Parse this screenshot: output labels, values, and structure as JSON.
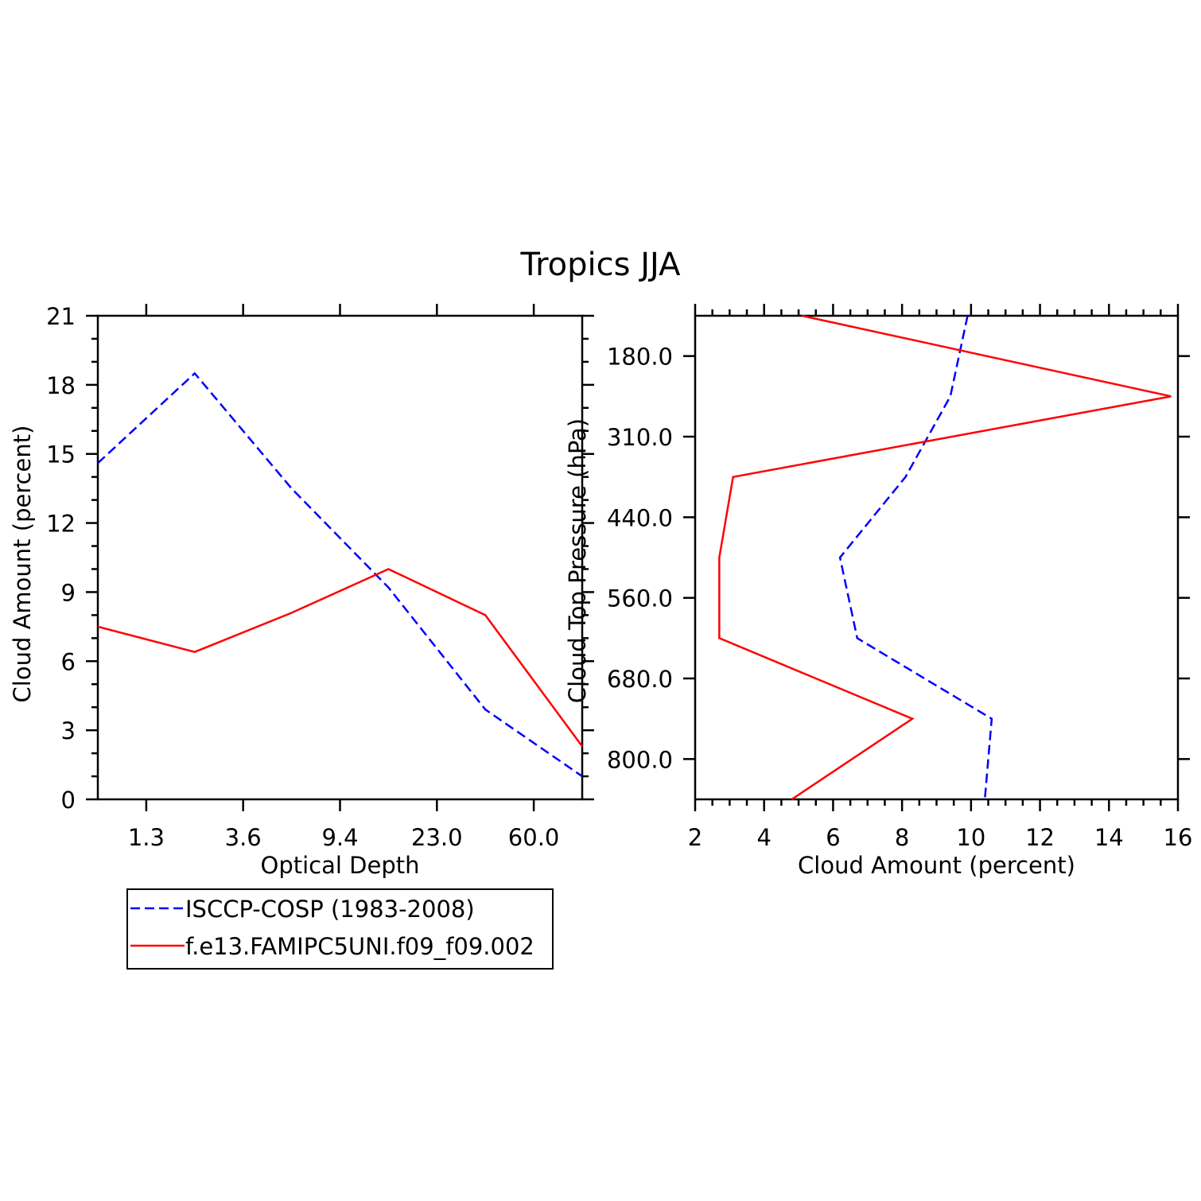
{
  "figure": {
    "title": "Tropics JJA"
  },
  "legend": {
    "entries": [
      {
        "label": "ISCCP-COSP (1983-2008)",
        "color": "#0000ff",
        "dash": "dashed"
      },
      {
        "label": "f.e13.FAMIPC5UNI.f09_f09.002",
        "color": "#ff0000",
        "dash": "solid"
      }
    ]
  },
  "chart_data": [
    {
      "type": "line",
      "xlabel": "Optical Depth",
      "ylabel": "Cloud Amount (percent)",
      "ylim": [
        0,
        21
      ],
      "yticks": [
        0,
        3,
        6,
        9,
        12,
        15,
        18,
        21
      ],
      "x_bins": 6,
      "x_tick_labels": [
        "1.3",
        "3.6",
        "9.4",
        "23.0",
        "60.0"
      ],
      "series": [
        {
          "name": "ISCCP-COSP (1983-2008)",
          "color": "#0000ff",
          "dash": "dashed",
          "values": [
            14.6,
            18.5,
            13.5,
            9.2,
            3.9,
            1.0
          ]
        },
        {
          "name": "f.e13.FAMIPC5UNI.f09_f09.002",
          "color": "#ff0000",
          "dash": "solid",
          "values": [
            7.5,
            6.4,
            8.1,
            10.0,
            8.0,
            2.3
          ]
        }
      ]
    },
    {
      "type": "line",
      "orientation": "vertical",
      "xlabel": "Cloud Amount (percent)",
      "ylabel": "Cloud Top Pressure (hPa)",
      "xlim": [
        2,
        16
      ],
      "xticks": [
        2,
        4,
        6,
        8,
        10,
        12,
        14,
        16
      ],
      "y_bins": 7,
      "y_tick_labels": [
        "180.0",
        "310.0",
        "440.0",
        "560.0",
        "680.0",
        "800.0"
      ],
      "series": [
        {
          "name": "ISCCP-COSP (1983-2008)",
          "color": "#0000ff",
          "dash": "dashed",
          "values": [
            9.9,
            9.4,
            8.1,
            6.2,
            6.7,
            10.6,
            10.4
          ]
        },
        {
          "name": "f.e13.FAMIPC5UNI.f09_f09.002",
          "color": "#ff0000",
          "dash": "solid",
          "values": [
            5.1,
            15.8,
            3.1,
            2.7,
            2.7,
            8.3,
            4.8
          ]
        }
      ]
    }
  ]
}
